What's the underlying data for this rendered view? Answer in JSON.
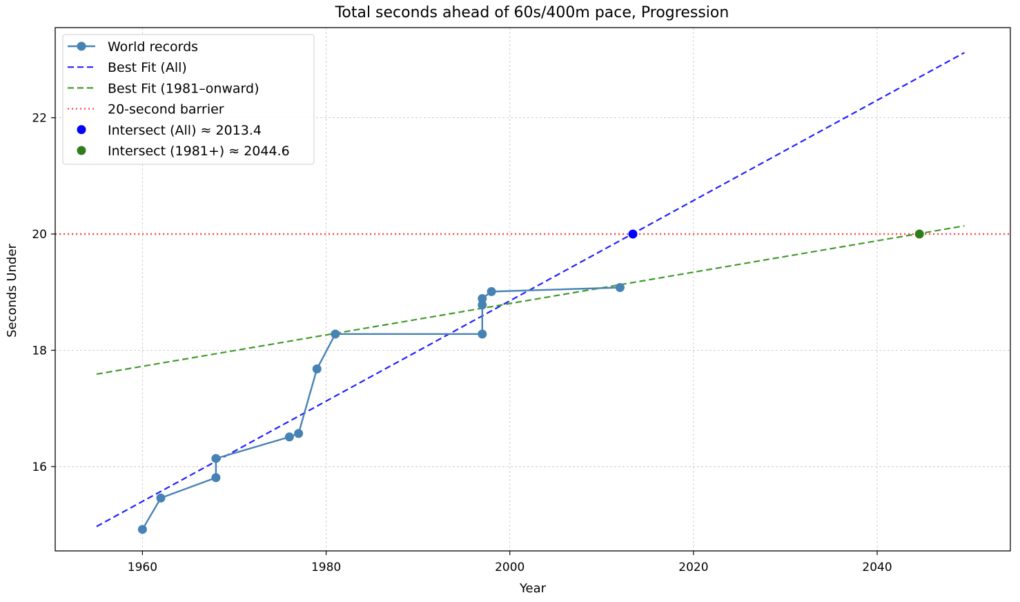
{
  "chart_data": {
    "type": "line",
    "title": "Total seconds ahead of 60s/400m pace, Progression",
    "xlabel": "Year",
    "ylabel": "Seconds Under",
    "xlim": [
      1950.5,
      2054.5
    ],
    "ylim": [
      14.55,
      23.55
    ],
    "xticks": [
      1960,
      1980,
      2000,
      2020,
      2040
    ],
    "yticks": [
      16,
      18,
      20,
      22
    ],
    "grid": true,
    "legend_position": "upper left",
    "series": [
      {
        "name": "World records",
        "kind": "line-marker",
        "color": "#4682b4",
        "x": [
          1960,
          1962,
          1968,
          1968,
          1976,
          1977,
          1979,
          1981,
          1997,
          1997,
          1997,
          1998,
          2012
        ],
        "y": [
          14.92,
          15.46,
          15.81,
          16.14,
          16.51,
          16.57,
          17.68,
          18.28,
          18.28,
          18.78,
          18.89,
          19.01,
          19.08
        ]
      },
      {
        "name": "Best Fit (All)",
        "kind": "dashed",
        "color": "#1f1fff",
        "x": [
          1955,
          2049.5
        ],
        "y": [
          14.97,
          23.12
        ]
      },
      {
        "name": "Best Fit (1981–onward)",
        "kind": "dashed",
        "color": "#3f9a2a",
        "x": [
          1955,
          2049.5
        ],
        "y": [
          17.59,
          20.14
        ]
      },
      {
        "name": "20-second barrier",
        "kind": "dotted-hline",
        "color": "#ff4d4d",
        "y": 20
      },
      {
        "name": "Intersect (All) ≈ 2013.4",
        "kind": "point",
        "color": "#0000ff",
        "x": [
          2013.4
        ],
        "y": [
          20
        ]
      },
      {
        "name": "Intersect (1981+) ≈ 2044.6",
        "kind": "point",
        "color": "#2e7d1a",
        "x": [
          2044.6
        ],
        "y": [
          20
        ]
      }
    ]
  }
}
